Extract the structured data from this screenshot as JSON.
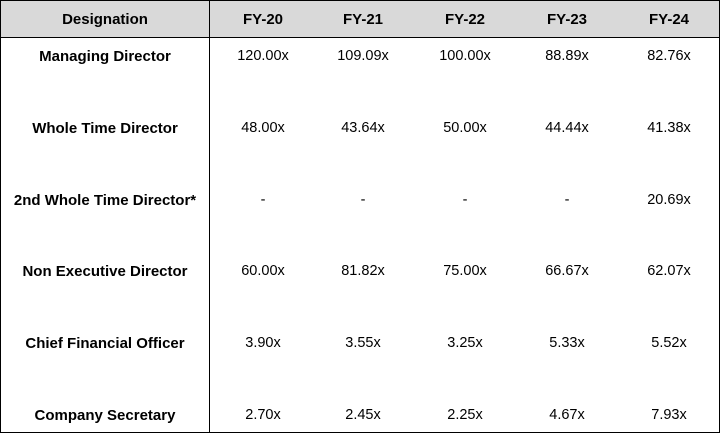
{
  "table": {
    "headers": [
      "Designation",
      "FY-20",
      "FY-21",
      "FY-22",
      "FY-23",
      "FY-24"
    ],
    "rows": [
      {
        "designation": "Managing Director",
        "values": [
          "120.00x",
          "109.09x",
          "100.00x",
          "88.89x",
          "82.76x"
        ]
      },
      {
        "designation": "Whole Time Director",
        "values": [
          "48.00x",
          "43.64x",
          "50.00x",
          "44.44x",
          "41.38x"
        ]
      },
      {
        "designation": "2nd Whole Time Director*",
        "values": [
          "-",
          "-",
          "-",
          "-",
          "20.69x"
        ]
      },
      {
        "designation": "Non Executive Director",
        "values": [
          "60.00x",
          "81.82x",
          "75.00x",
          "66.67x",
          "62.07x"
        ]
      },
      {
        "designation": "Chief Financial Officer",
        "values": [
          "3.90x",
          "3.55x",
          "3.25x",
          "5.33x",
          "5.52x"
        ]
      },
      {
        "designation": "Company Secretary",
        "values": [
          "2.70x",
          "2.45x",
          "2.25x",
          "4.67x",
          "7.93x"
        ]
      }
    ]
  },
  "colors": {
    "header_background": "#d9d9d9",
    "border": "#000000",
    "text": "#000000"
  }
}
